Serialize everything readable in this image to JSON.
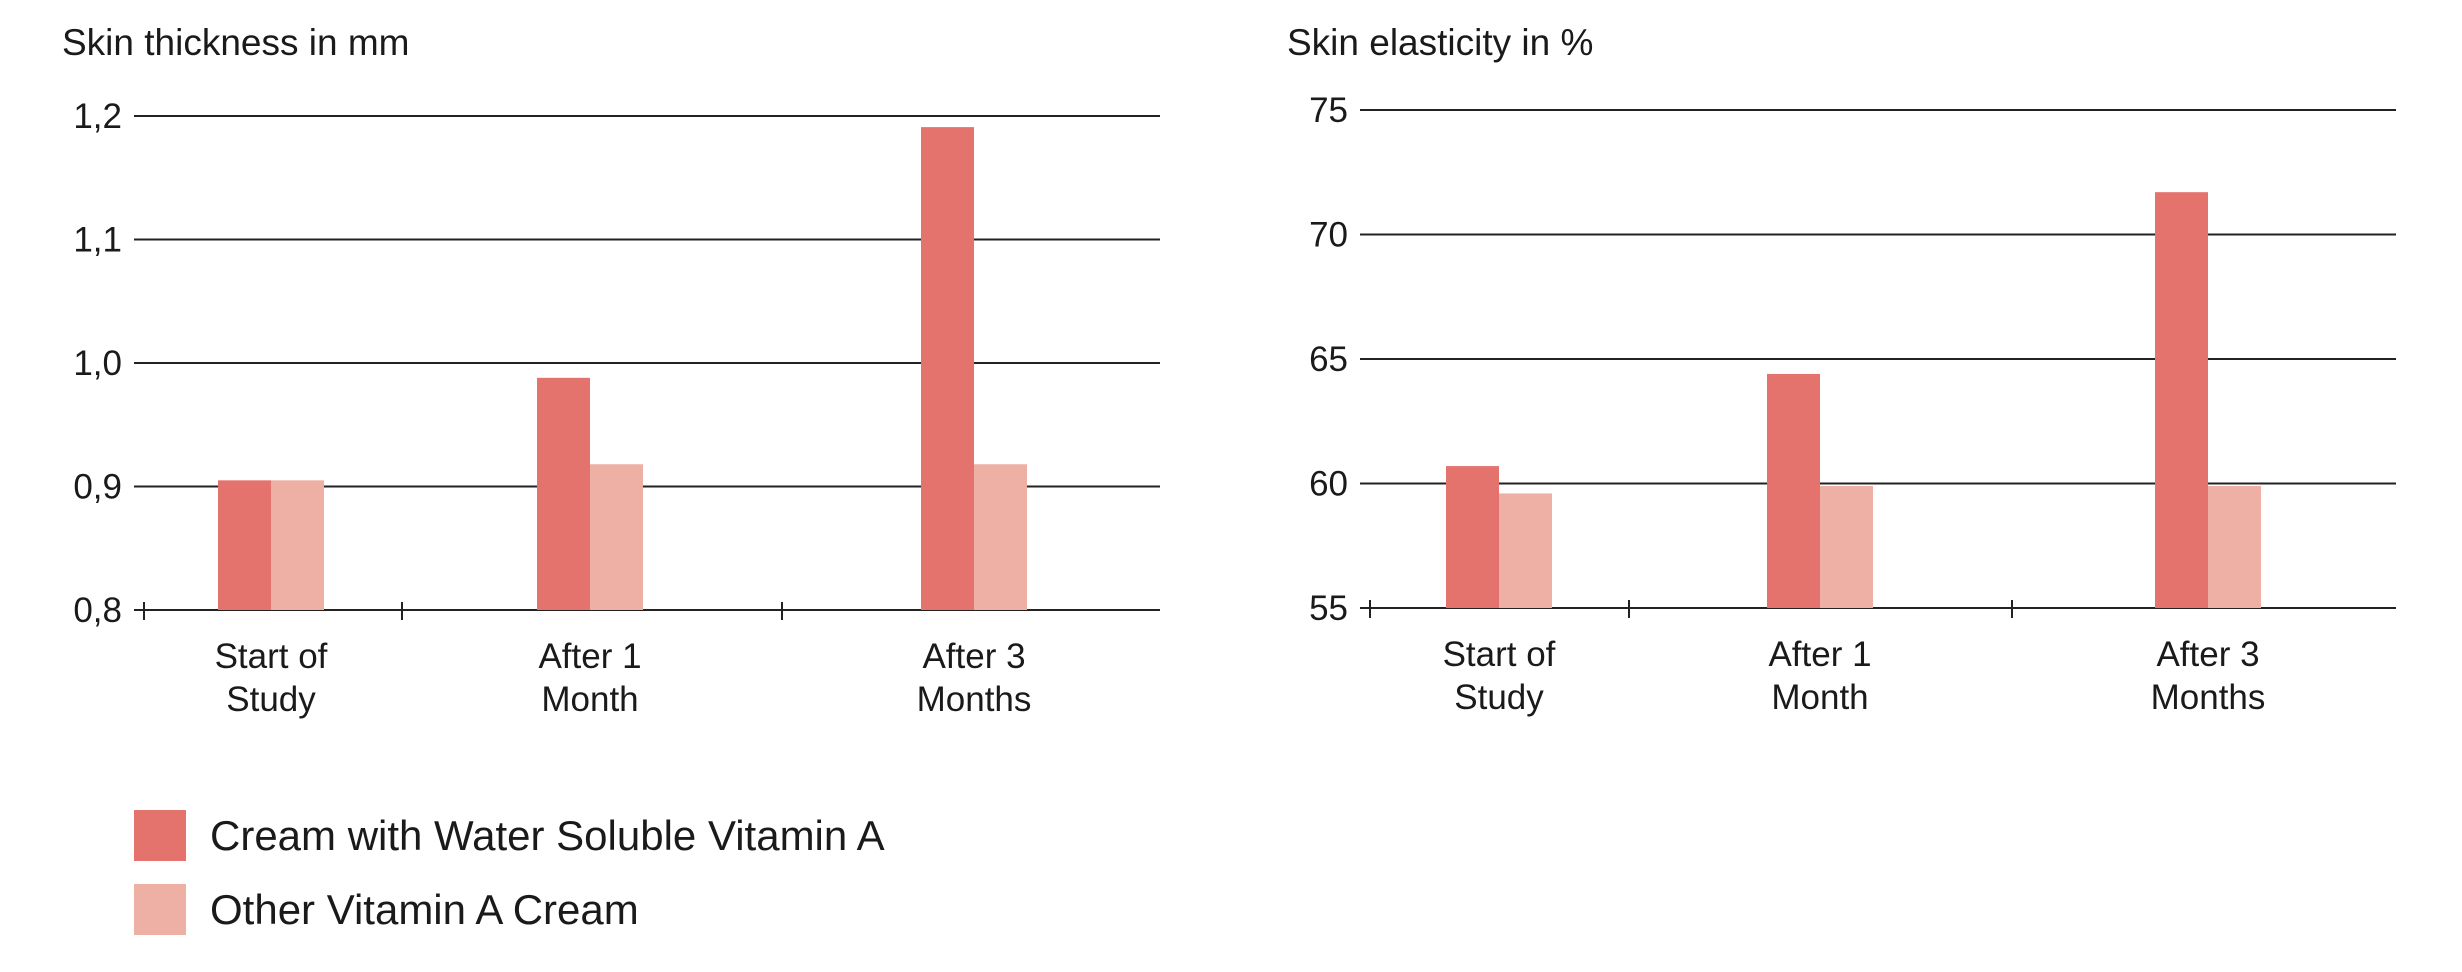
{
  "colors": {
    "primary_series": "#e5736d",
    "secondary_series": "#eeafa4",
    "grid": "#222222",
    "text": "#1a1a1a"
  },
  "legend": {
    "items": [
      {
        "label": "Cream with Water Soluble Vitamin A",
        "color": "#e5736d"
      },
      {
        "label": "Other Vitamin A Cream",
        "color": "#eeafa4"
      }
    ]
  },
  "chart_data": [
    {
      "type": "bar",
      "title": "Skin thickness in mm",
      "xlabel": "",
      "ylabel": "",
      "categories": [
        [
          "Start of",
          "Study"
        ],
        [
          "After 1",
          "Month"
        ],
        [
          "After 3",
          "Months"
        ]
      ],
      "ylim": [
        0.8,
        1.2
      ],
      "yticks": [
        0.8,
        0.9,
        1.0,
        1.1,
        1.2
      ],
      "ytick_labels": [
        "0,8",
        "0,9",
        "1,0",
        "1,1",
        "1,2"
      ],
      "grid": true,
      "legend_position": "bottom-left",
      "series": [
        {
          "name": "Cream with Water Soluble Vitamin A",
          "color": "#e5736d",
          "values": [
            0.905,
            0.988,
            1.191
          ]
        },
        {
          "name": "Other Vitamin A Cream",
          "color": "#eeafa4",
          "values": [
            0.905,
            0.918,
            0.918
          ]
        }
      ]
    },
    {
      "type": "bar",
      "title": "Skin elasticity in %",
      "xlabel": "",
      "ylabel": "",
      "categories": [
        [
          "Start of",
          "Study"
        ],
        [
          "After 1",
          "Month"
        ],
        [
          "After 3",
          "Months"
        ]
      ],
      "ylim": [
        55,
        75
      ],
      "yticks": [
        55,
        60,
        65,
        70,
        75
      ],
      "ytick_labels": [
        "55",
        "60",
        "65",
        "70",
        "75"
      ],
      "grid": true,
      "legend_position": "bottom-left",
      "series": [
        {
          "name": "Cream with Water Soluble Vitamin A",
          "color": "#e5736d",
          "values": [
            60.7,
            64.4,
            71.7
          ]
        },
        {
          "name": "Other Vitamin A Cream",
          "color": "#eeafa4",
          "values": [
            59.6,
            59.9,
            59.9
          ]
        }
      ]
    }
  ]
}
